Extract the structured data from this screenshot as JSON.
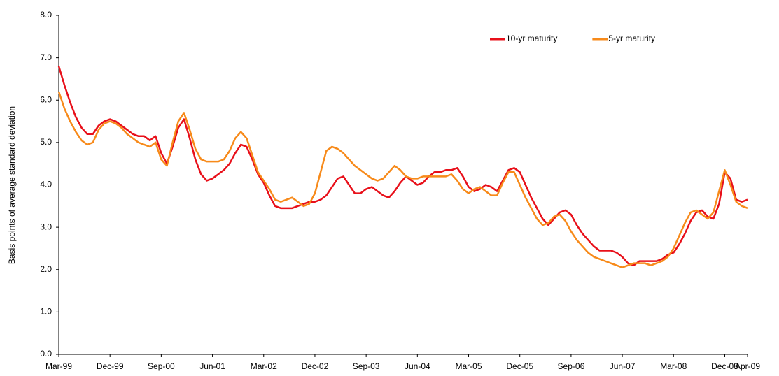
{
  "chart_data": {
    "type": "line",
    "y_label": "Basis points of average standard deviation",
    "categories": [
      "Mar-99",
      null,
      null,
      null,
      null,
      null,
      null,
      null,
      null,
      "Dec-99",
      null,
      null,
      null,
      null,
      null,
      null,
      null,
      null,
      "Sep-00",
      null,
      null,
      null,
      null,
      null,
      null,
      null,
      null,
      "Jun-01",
      null,
      null,
      null,
      null,
      null,
      null,
      null,
      null,
      "Mar-02",
      null,
      null,
      null,
      null,
      null,
      null,
      null,
      null,
      "Dec-02",
      null,
      null,
      null,
      null,
      null,
      null,
      null,
      null,
      "Sep-03",
      null,
      null,
      null,
      null,
      null,
      null,
      null,
      null,
      "Jun-04",
      null,
      null,
      null,
      null,
      null,
      null,
      null,
      null,
      "Mar-05",
      null,
      null,
      null,
      null,
      null,
      null,
      null,
      null,
      "Dec-05",
      null,
      null,
      null,
      null,
      null,
      null,
      null,
      null,
      "Sep-06",
      null,
      null,
      null,
      null,
      null,
      null,
      null,
      null,
      "Jun-07",
      null,
      null,
      null,
      null,
      null,
      null,
      null,
      null,
      "Mar-08",
      null,
      null,
      null,
      null,
      null,
      null,
      null,
      null,
      "Dec-08",
      null,
      null,
      null,
      "Apr-09"
    ],
    "series": [
      {
        "name": "10-yr maturity",
        "color": "#e8101a",
        "values": [
          6.8,
          6.35,
          5.95,
          5.6,
          5.35,
          5.2,
          5.2,
          5.4,
          5.5,
          5.55,
          5.5,
          5.4,
          5.3,
          5.2,
          5.15,
          5.15,
          5.05,
          5.15,
          4.75,
          4.5,
          4.9,
          5.35,
          5.55,
          5.1,
          4.6,
          4.25,
          4.1,
          4.15,
          4.25,
          4.35,
          4.5,
          4.75,
          4.95,
          4.9,
          4.6,
          4.25,
          4.05,
          3.75,
          3.5,
          3.45,
          3.45,
          3.45,
          3.5,
          3.55,
          3.6,
          3.6,
          3.65,
          3.75,
          3.95,
          4.15,
          4.2,
          4.0,
          3.8,
          3.8,
          3.9,
          3.95,
          3.85,
          3.75,
          3.7,
          3.85,
          4.05,
          4.2,
          4.1,
          4.0,
          4.05,
          4.2,
          4.3,
          4.3,
          4.35,
          4.35,
          4.4,
          4.2,
          3.95,
          3.85,
          3.9,
          4.0,
          3.95,
          3.85,
          4.1,
          4.35,
          4.4,
          4.3,
          4.0,
          3.7,
          3.45,
          3.2,
          3.05,
          3.2,
          3.35,
          3.4,
          3.3,
          3.05,
          2.85,
          2.7,
          2.55,
          2.45,
          2.45,
          2.45,
          2.4,
          2.3,
          2.15,
          2.1,
          2.2,
          2.2,
          2.2,
          2.2,
          2.25,
          2.35,
          2.4,
          2.6,
          2.85,
          3.15,
          3.35,
          3.4,
          3.25,
          3.2,
          3.55,
          4.3,
          4.15,
          3.65,
          3.6,
          3.65
        ]
      },
      {
        "name": "5-yr maturity",
        "color": "#f78a1a",
        "values": [
          6.2,
          5.8,
          5.5,
          5.25,
          5.05,
          4.95,
          5.0,
          5.3,
          5.45,
          5.5,
          5.45,
          5.35,
          5.2,
          5.1,
          5.0,
          4.95,
          4.9,
          5.0,
          4.6,
          4.45,
          5.0,
          5.5,
          5.7,
          5.3,
          4.85,
          4.6,
          4.55,
          4.55,
          4.55,
          4.6,
          4.8,
          5.1,
          5.25,
          5.1,
          4.7,
          4.3,
          4.1,
          3.9,
          3.65,
          3.6,
          3.65,
          3.7,
          3.6,
          3.5,
          3.55,
          3.8,
          4.3,
          4.8,
          4.9,
          4.85,
          4.75,
          4.6,
          4.45,
          4.35,
          4.25,
          4.15,
          4.1,
          4.15,
          4.3,
          4.45,
          4.35,
          4.2,
          4.15,
          4.15,
          4.2,
          4.2,
          4.2,
          4.2,
          4.2,
          4.25,
          4.1,
          3.9,
          3.8,
          3.9,
          3.95,
          3.85,
          3.75,
          3.75,
          4.05,
          4.3,
          4.3,
          4.0,
          3.7,
          3.45,
          3.2,
          3.05,
          3.1,
          3.25,
          3.3,
          3.15,
          2.9,
          2.7,
          2.55,
          2.4,
          2.3,
          2.25,
          2.2,
          2.15,
          2.1,
          2.05,
          2.1,
          2.15,
          2.15,
          2.15,
          2.1,
          2.15,
          2.2,
          2.3,
          2.5,
          2.8,
          3.1,
          3.35,
          3.4,
          3.3,
          3.2,
          3.35,
          3.85,
          4.35,
          4.0,
          3.6,
          3.5,
          3.45
        ]
      }
    ],
    "ylim": [
      0,
      8
    ],
    "yticks": [
      {
        "value": 0,
        "label": "0.0"
      },
      {
        "value": 1,
        "label": "1.0"
      },
      {
        "value": 2,
        "label": "2.0"
      },
      {
        "value": 3,
        "label": "3.0"
      },
      {
        "value": 4,
        "label": "4.0"
      },
      {
        "value": 5,
        "label": "5.0"
      },
      {
        "value": 6,
        "label": "6.0"
      },
      {
        "value": 7,
        "label": "7.0"
      },
      {
        "value": 8,
        "label": "8.0"
      }
    ],
    "grid": false,
    "legend": "top-right"
  }
}
